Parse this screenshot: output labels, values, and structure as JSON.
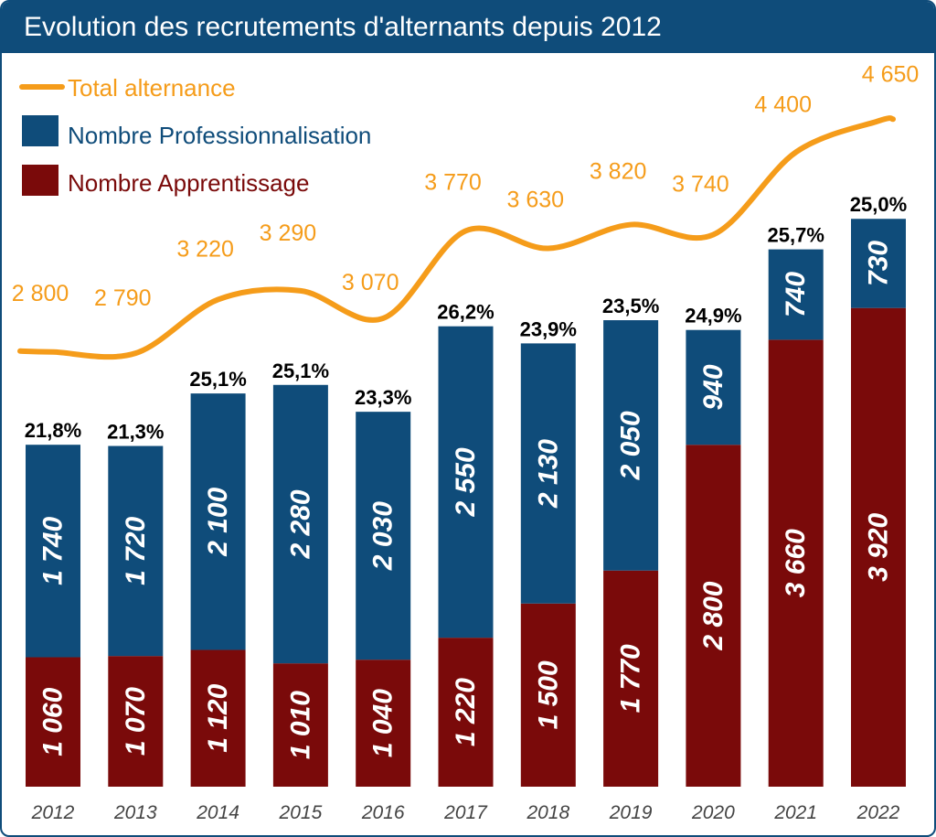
{
  "title": "Evolution des recrutements d'alternants depuis 2012",
  "legend": [
    {
      "label": "Total alternance",
      "color": "#f59c1a",
      "shape": "line"
    },
    {
      "label": "Nombre Professionnalisation",
      "color": "#0f4c7a",
      "shape": "square"
    },
    {
      "label": "Nombre Apprentissage",
      "color": "#7a0a0a",
      "shape": "square"
    }
  ],
  "chart_data": {
    "type": "bar",
    "stacked": true,
    "title": "Evolution des recrutements d'alternants depuis 2012",
    "categories": [
      "2012",
      "2013",
      "2014",
      "2015",
      "2016",
      "2017",
      "2018",
      "2019",
      "2020",
      "2021",
      "2022"
    ],
    "series": [
      {
        "name": "Nombre Apprentissage",
        "color": "#7a0a0a",
        "values": [
          1060,
          1070,
          1120,
          1010,
          1040,
          1220,
          1500,
          1770,
          2800,
          3660,
          3920
        ],
        "labels": [
          "1 060",
          "1 070",
          "1 120",
          "1 010",
          "1 040",
          "1 220",
          "1 500",
          "1 770",
          "2 800",
          "3 660",
          "3 920"
        ]
      },
      {
        "name": "Nombre Professionnalisation",
        "color": "#0f4c7a",
        "values": [
          1740,
          1720,
          2100,
          2280,
          2030,
          2550,
          2130,
          2050,
          940,
          740,
          730
        ],
        "labels": [
          "1 740",
          "1 720",
          "2 100",
          "2 280",
          "2 030",
          "2 550",
          "2 130",
          "2 050",
          "940",
          "740",
          "730"
        ]
      }
    ],
    "share_labels": [
      "21,8%",
      "21,3%",
      "25,1%",
      "25,1%",
      "23,3%",
      "26,2%",
      "23,9%",
      "23,5%",
      "24,9%",
      "25,7%",
      "25,0%"
    ],
    "total_line": {
      "name": "Total alternance",
      "color": "#f59c1a",
      "values": [
        2800,
        2790,
        3220,
        3290,
        3070,
        3770,
        3630,
        3820,
        3740,
        4400,
        4650
      ],
      "labels": [
        "2 800",
        "2 790",
        "3 220",
        "3 290",
        "3 070",
        "3 770",
        "3 630",
        "3 820",
        "3 740",
        "4 400",
        "4 650"
      ]
    },
    "legend_position": "top-left",
    "grid": false
  }
}
